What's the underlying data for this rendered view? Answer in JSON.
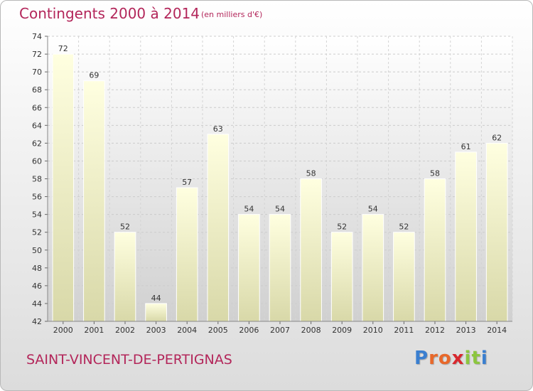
{
  "title": "Contingents 2000 à 2014",
  "subtitle": "(en milliers d'€)",
  "commune": "SAINT-VINCENT-DE-PERTIGNAS",
  "logo": {
    "letters": [
      "P",
      "r",
      "o",
      "x",
      "i",
      "t",
      "i"
    ],
    "colors": [
      "#3a7fd0",
      "#e8682a",
      "#e8682a",
      "#d8282e",
      "#8cc63f",
      "#8cc63f",
      "#3a7fd0"
    ]
  },
  "chart_data": {
    "type": "bar",
    "title": "Contingents 2000 à 2014",
    "subtitle": "(en milliers d'€)",
    "xlabel": "",
    "ylabel": "",
    "categories": [
      "2000",
      "2001",
      "2002",
      "2003",
      "2004",
      "2005",
      "2006",
      "2007",
      "2008",
      "2009",
      "2010",
      "2011",
      "2012",
      "2013",
      "2014"
    ],
    "values": [
      72,
      69,
      52,
      44,
      57,
      63,
      54,
      54,
      58,
      52,
      54,
      52,
      58,
      61,
      62
    ],
    "ylim": [
      42,
      74
    ],
    "yticks": [
      42,
      44,
      46,
      48,
      50,
      52,
      54,
      56,
      58,
      60,
      62,
      64,
      66,
      68,
      70,
      72,
      74
    ],
    "grid": true,
    "bar_color_top": "#ffffe0",
    "bar_color_bottom": "#d8d8a8"
  }
}
